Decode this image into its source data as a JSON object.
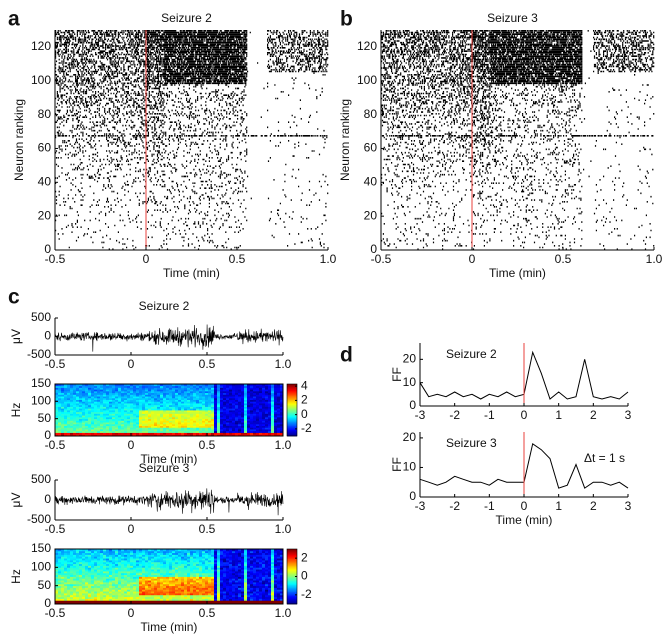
{
  "chart_data": [
    {
      "type": "raster",
      "label": "a",
      "title": "Seizure 2",
      "xlabel": "Time (min)",
      "ylabel": "Neuron ranking",
      "xlim": [
        -0.5,
        1
      ],
      "xticks": [
        -0.5,
        0,
        0.5,
        {
          "value": 1,
          "label": "1.0"
        }
      ],
      "ylim": [
        0,
        130
      ],
      "yticks": [
        0,
        20,
        40,
        60,
        80,
        100,
        120
      ],
      "event_x": 0,
      "event_color": "#e8413c"
    },
    {
      "type": "raster",
      "label": "b",
      "title": "Seizure 3",
      "xlabel": "Time (min)",
      "ylabel": "Neuron ranking",
      "xlim": [
        -0.5,
        1
      ],
      "xticks": [
        -0.5,
        0,
        0.5,
        {
          "value": 1,
          "label": "1.0"
        }
      ],
      "ylim": [
        0,
        130
      ],
      "yticks": [
        0,
        20,
        40,
        60,
        80,
        100,
        120
      ],
      "event_x": 0,
      "event_color": "#e8413c"
    },
    {
      "type": "trace",
      "label": "c",
      "title": "Seizure 2",
      "ylabel": "μV",
      "xlim": [
        -0.5,
        1
      ],
      "xticks": [
        -0.5,
        0,
        0.5,
        {
          "value": 1,
          "label": "1.0"
        }
      ],
      "ylim": [
        -500,
        500
      ],
      "yticks": [
        -500,
        0,
        500
      ]
    },
    {
      "type": "spectrogram",
      "xlabel": "Time (min)",
      "ylabel": "Hz",
      "xlim": [
        -0.5,
        1
      ],
      "xticks": [
        -0.5,
        0,
        0.5,
        {
          "value": 1,
          "label": "1.0"
        }
      ],
      "ylim": [
        0,
        150
      ],
      "yticks": [
        0,
        50,
        100,
        150
      ],
      "clim": [
        -3,
        4.3
      ],
      "cticks": [
        -2,
        0,
        2,
        4
      ]
    },
    {
      "type": "trace",
      "title": "Seizure 3",
      "ylabel": "μV",
      "xlim": [
        -0.5,
        1
      ],
      "xticks": [
        -0.5,
        0,
        0.5,
        {
          "value": 1,
          "label": "1.0"
        }
      ],
      "ylim": [
        -500,
        500
      ],
      "yticks": [
        -500,
        0,
        500
      ]
    },
    {
      "type": "spectrogram",
      "xlabel": "Time (min)",
      "ylabel": "Hz",
      "xlim": [
        -0.5,
        1
      ],
      "xticks": [
        -0.5,
        0,
        0.5,
        {
          "value": 1,
          "label": "1.0"
        }
      ],
      "ylim": [
        0,
        150
      ],
      "yticks": [
        0,
        50,
        100,
        150
      ],
      "clim": [
        -3,
        3
      ],
      "cticks": [
        -2,
        0,
        2
      ]
    },
    {
      "type": "line",
      "label": "d",
      "title": "Seizure 2",
      "ylabel": "FF",
      "x": [
        -3,
        -2.75,
        -2.5,
        -2.25,
        -2,
        -1.75,
        -1.5,
        -1.25,
        -1,
        -0.75,
        -0.5,
        -0.25,
        0,
        0.25,
        0.5,
        0.75,
        1,
        1.25,
        1.5,
        1.75,
        2,
        2.25,
        2.5,
        2.75,
        3
      ],
      "values": [
        10,
        4,
        5,
        4,
        6,
        4,
        5,
        3,
        5,
        4,
        6,
        4,
        5,
        23,
        14,
        3,
        6,
        3,
        4,
        20,
        4,
        3,
        4,
        3,
        6
      ],
      "color": "#000000",
      "xlim": [
        -3,
        3
      ],
      "xticks": [
        -3,
        -2,
        -1,
        0,
        1,
        2,
        3
      ],
      "ylim": [
        0,
        27
      ],
      "yticks": [
        0,
        10,
        20
      ],
      "event_x": 0,
      "event_color": "#e8413c"
    },
    {
      "type": "line",
      "title": "Seizure 3",
      "annotation": "Δt = 1 s",
      "xlabel": "Time (min)",
      "ylabel": "FF",
      "x": [
        -3,
        -2.75,
        -2.5,
        -2.25,
        -2,
        -1.75,
        -1.5,
        -1.25,
        -1,
        -0.75,
        -0.5,
        -0.25,
        0,
        0.25,
        0.5,
        0.75,
        1,
        1.25,
        1.5,
        1.75,
        2,
        2.25,
        2.5,
        2.75,
        3
      ],
      "values": [
        6,
        5,
        4,
        5,
        7,
        6,
        5,
        5,
        4,
        6,
        5,
        5,
        5,
        18,
        16,
        13,
        3,
        4,
        11,
        3,
        5,
        5,
        4,
        5,
        3
      ],
      "color": "#000000",
      "xlim": [
        -3,
        3
      ],
      "xticks": [
        -3,
        -2,
        -1,
        0,
        1,
        2,
        3
      ],
      "ylim": [
        0,
        22
      ],
      "yticks": [
        0,
        10,
        20
      ],
      "event_x": 0,
      "event_color": "#e8413c"
    }
  ]
}
